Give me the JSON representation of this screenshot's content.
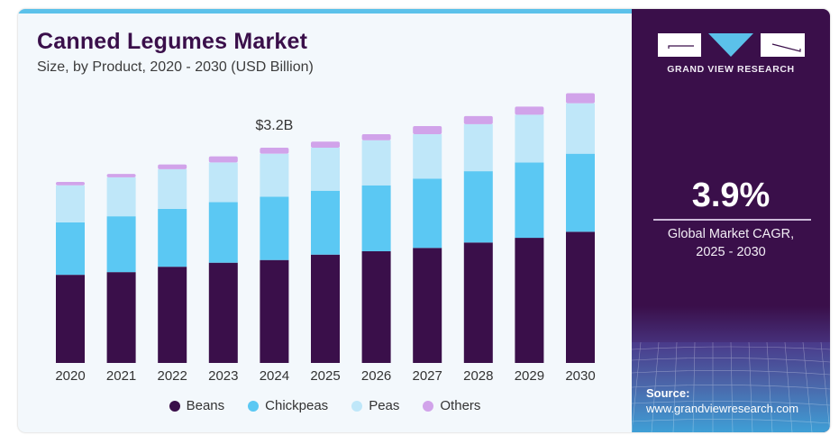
{
  "header": {
    "title": "Canned Legumes Market",
    "subtitle": "Size, by Product, 2020 - 2030 (USD Billion)"
  },
  "side_panel": {
    "brand": "GRAND VIEW RESEARCH",
    "cagr_value": "3.9%",
    "cagr_label_line1": "Global Market CAGR,",
    "cagr_label_line2": "2025 - 2030",
    "source_label": "Source:",
    "source_url": "www.grandviewresearch.com"
  },
  "colors": {
    "beans": "#3a0f4a",
    "chickpeas": "#5bc8f3",
    "peas": "#bfe7f9",
    "others": "#d1a3ea",
    "accent": "#5bc1ea"
  },
  "chart_data": {
    "type": "bar",
    "stacked": true,
    "title": "Canned Legumes Market",
    "subtitle": "Size, by Product, 2020 - 2030 (USD Billion)",
    "xlabel": "",
    "ylabel": "",
    "ylim": [
      0,
      4.1
    ],
    "grid": false,
    "legend_position": "bottom",
    "categories": [
      "2020",
      "2021",
      "2022",
      "2023",
      "2024",
      "2025",
      "2026",
      "2027",
      "2028",
      "2029",
      "2030"
    ],
    "series": [
      {
        "name": "Beans",
        "values": [
          1.31,
          1.35,
          1.43,
          1.49,
          1.53,
          1.61,
          1.66,
          1.71,
          1.79,
          1.86,
          1.95
        ]
      },
      {
        "name": "Chickpeas",
        "values": [
          0.78,
          0.83,
          0.86,
          0.9,
          0.94,
          0.95,
          0.98,
          1.03,
          1.06,
          1.12,
          1.16
        ]
      },
      {
        "name": "Peas",
        "values": [
          0.55,
          0.58,
          0.59,
          0.59,
          0.64,
          0.64,
          0.67,
          0.66,
          0.7,
          0.71,
          0.75
        ]
      },
      {
        "name": "Others",
        "values": [
          0.05,
          0.05,
          0.07,
          0.09,
          0.09,
          0.09,
          0.09,
          0.12,
          0.12,
          0.12,
          0.15
        ]
      }
    ],
    "annotations": [
      {
        "category": "2024",
        "text": "$3.2B"
      }
    ]
  }
}
